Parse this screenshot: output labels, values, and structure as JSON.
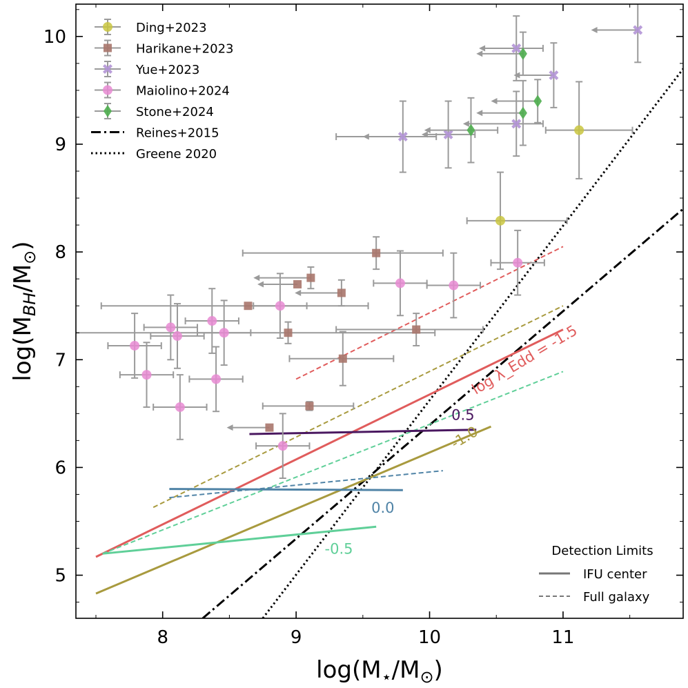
{
  "chart_data": {
    "type": "scatter",
    "xlabel": "log(M⋆/M⊙)",
    "ylabel": "log(M_BH/M⊙)",
    "xlim": [
      7.35,
      11.9
    ],
    "ylim": [
      4.6,
      10.3
    ],
    "xticks": [
      8,
      9,
      10,
      11
    ],
    "yticks": [
      5,
      6,
      7,
      8,
      9,
      10
    ],
    "legend": {
      "position": "top-left",
      "entries": [
        {
          "label": "Ding+2023",
          "kind": "marker",
          "color": "#c9c640",
          "marker": "circle"
        },
        {
          "label": "Harikane+2023",
          "kind": "marker",
          "color": "#a9766c",
          "marker": "square"
        },
        {
          "label": "Yue+2023",
          "kind": "marker",
          "color": "#b393d6",
          "marker": "x"
        },
        {
          "label": "Maiolino+2024",
          "kind": "marker",
          "color": "#e889d2",
          "marker": "circle"
        },
        {
          "label": "Stone+2024",
          "kind": "marker",
          "color": "#4fae4f",
          "marker": "diamond"
        },
        {
          "label": "Reines+2015",
          "kind": "line",
          "color": "#000000",
          "dash": "dashdot"
        },
        {
          "label": "Greene 2020",
          "kind": "line",
          "color": "#000000",
          "dash": "dotted"
        }
      ]
    },
    "legend2": {
      "position": "bottom-right",
      "title": "Detection Limits",
      "entries": [
        {
          "label": "IFU center",
          "dash": "solid"
        },
        {
          "label": "Full galaxy",
          "dash": "dashed"
        }
      ]
    },
    "series": [
      {
        "name": "Ding+2023",
        "marker": "circle",
        "color": "#c9c640",
        "points": [
          {
            "x": 10.53,
            "y": 8.29,
            "xerr": [
              0.25,
              0.5
            ],
            "yerr": [
              0.45,
              0.45
            ]
          },
          {
            "x": 11.12,
            "y": 9.13,
            "xerr": [
              0.25,
              0.4
            ],
            "yerr": [
              0.45,
              0.45
            ]
          }
        ]
      },
      {
        "name": "Harikane+2023",
        "marker": "square",
        "color": "#a9766c",
        "points": [
          {
            "x": 9.6,
            "y": 7.99,
            "yerr": [
              0.15,
              0.15
            ],
            "xerr": [
              1.0,
              0.5
            ]
          },
          {
            "x": 9.01,
            "y": 7.7,
            "upper_limit": true,
            "arrow": 0.3
          },
          {
            "x": 9.11,
            "y": 7.76,
            "upper_limit": true,
            "yerr": [
              0.1,
              0.1
            ],
            "arrow": 0.43
          },
          {
            "x": 9.34,
            "y": 7.62,
            "upper_limit": true,
            "yerr": [
              0.12,
              0.12
            ],
            "arrow": 0.35
          },
          {
            "x": 8.64,
            "y": 7.5,
            "xerr": [
              1.1,
              0.9
            ]
          },
          {
            "x": 8.94,
            "y": 7.25,
            "xerr": [
              1.7,
              1.1
            ],
            "yerr": [
              0.1,
              0.1
            ]
          },
          {
            "x": 9.9,
            "y": 7.28,
            "xerr": [
              0.6,
              0.5
            ],
            "yerr": [
              0.15,
              0.15
            ]
          },
          {
            "x": 9.35,
            "y": 7.01,
            "xerr": [
              0.4,
              0.38
            ],
            "yerr": [
              0.25,
              0.25
            ]
          },
          {
            "x": 9.1,
            "y": 6.57,
            "xerr": [
              0.35,
              0.33
            ],
            "yerr": [
              0.04,
              0.04
            ]
          },
          {
            "x": 8.8,
            "y": 6.37,
            "upper_limit": true,
            "arrow": 0.32
          }
        ]
      },
      {
        "name": "Yue+2023",
        "marker": "x",
        "color": "#b393d6",
        "points": [
          {
            "x": 11.56,
            "y": 10.06,
            "upper_limit": true,
            "yerr": [
              0.3,
              0.3
            ],
            "arrow": 0.35
          },
          {
            "x": 10.65,
            "y": 9.89,
            "upper_limit": true,
            "yerr": [
              0.3,
              0.3
            ],
            "xerr": [
              0.0,
              0.2
            ],
            "arrow": 0.28
          },
          {
            "x": 10.93,
            "y": 9.64,
            "upper_limit": true,
            "yerr": [
              0.3,
              0.3
            ],
            "arrow": 0.3
          },
          {
            "x": 10.65,
            "y": 9.19,
            "upper_limit": true,
            "yerr": [
              0.3,
              0.3
            ],
            "xerr": [
              0.0,
              0.2
            ],
            "arrow": 0.4
          },
          {
            "x": 9.8,
            "y": 9.07,
            "upper_limit": true,
            "yerr": [
              0.33,
              0.33
            ],
            "xerr": [
              0.5,
              0.25
            ],
            "arrow": 0.3
          },
          {
            "x": 10.14,
            "y": 9.09,
            "upper_limit": true,
            "yerr": [
              0.31,
              0.31
            ],
            "xerr": [
              0.0,
              0.2
            ],
            "arrow": 0.2
          }
        ]
      },
      {
        "name": "Maiolino+2024",
        "marker": "circle",
        "color": "#e889d2",
        "points": [
          {
            "x": 10.66,
            "y": 7.9,
            "xerr": [
              0.2,
              0.2
            ],
            "yerr": [
              0.3,
              0.3
            ]
          },
          {
            "x": 9.78,
            "y": 7.71,
            "xerr": [
              0.2,
              0.2
            ],
            "yerr": [
              0.3,
              0.3
            ]
          },
          {
            "x": 10.18,
            "y": 7.69,
            "xerr": [
              0.2,
              0.2
            ],
            "yerr": [
              0.3,
              0.3
            ]
          },
          {
            "x": 8.88,
            "y": 7.5,
            "xerr": [
              0.2,
              0.2
            ],
            "yerr": [
              0.3,
              0.3
            ]
          },
          {
            "x": 8.37,
            "y": 7.36,
            "xerr": [
              0.2,
              0.2
            ],
            "yerr": [
              0.3,
              0.3
            ]
          },
          {
            "x": 8.06,
            "y": 7.3,
            "xerr": [
              0.2,
              0.2
            ],
            "yerr": [
              0.3,
              0.3
            ]
          },
          {
            "x": 8.46,
            "y": 7.25,
            "xerr": [
              0.2,
              0.2
            ],
            "yerr": [
              0.3,
              0.3
            ]
          },
          {
            "x": 8.11,
            "y": 7.22,
            "xerr": [
              0.2,
              0.2
            ],
            "yerr": [
              0.3,
              0.3
            ]
          },
          {
            "x": 7.79,
            "y": 7.13,
            "xerr": [
              0.2,
              0.2
            ],
            "yerr": [
              0.3,
              0.3
            ]
          },
          {
            "x": 7.88,
            "y": 6.86,
            "xerr": [
              0.2,
              0.2
            ],
            "yerr": [
              0.3,
              0.3
            ]
          },
          {
            "x": 8.4,
            "y": 6.82,
            "xerr": [
              0.2,
              0.2
            ],
            "yerr": [
              0.3,
              0.3
            ]
          },
          {
            "x": 8.13,
            "y": 6.56,
            "xerr": [
              0.2,
              0.2
            ],
            "yerr": [
              0.3,
              0.3
            ]
          },
          {
            "x": 8.9,
            "y": 6.2,
            "xerr": [
              0.2,
              0.2
            ],
            "yerr": [
              0.3,
              0.3
            ]
          }
        ]
      },
      {
        "name": "Stone+2024",
        "marker": "diamond",
        "color": "#4fae4f",
        "points": [
          {
            "x": 10.7,
            "y": 9.84,
            "upper_limit": true,
            "yerr": [
              0.2,
              0.2
            ],
            "arrow": 0.35
          },
          {
            "x": 10.81,
            "y": 9.4,
            "upper_limit": true,
            "yerr": [
              0.2,
              0.2
            ],
            "arrow": 0.35
          },
          {
            "x": 10.7,
            "y": 9.29,
            "upper_limit": true,
            "yerr": [
              0.3,
              0.3
            ],
            "arrow": 0.35
          },
          {
            "x": 10.31,
            "y": 9.13,
            "upper_limit": true,
            "yerr": [
              0.3,
              0.3
            ],
            "xerr": [
              0.0,
              0.2
            ],
            "arrow": 0.35
          }
        ]
      }
    ],
    "relations": [
      {
        "name": "Reines+2015",
        "dash": "dashdot",
        "color": "#000000",
        "x": [
          8.3,
          11.9
        ],
        "y": [
          4.6,
          8.4
        ]
      },
      {
        "name": "Greene 2020",
        "dash": "dotted",
        "color": "#000000",
        "x": [
          8.75,
          11.9
        ],
        "y": [
          4.6,
          9.7
        ]
      }
    ],
    "detection_limits": [
      {
        "log_lambda_edd": "-1.5",
        "color": "#e05c5c",
        "ifu_center": {
          "x": [
            7.5,
            11.0
          ],
          "y": [
            5.17,
            7.28
          ]
        },
        "full_galaxy": {
          "x": [
            9.0,
            11.0
          ],
          "y": [
            6.82,
            8.05
          ]
        }
      },
      {
        "log_lambda_edd": "-1.0",
        "color": "#a89a3e",
        "ifu_center": {
          "x": [
            7.5,
            10.46
          ],
          "y": [
            4.83,
            6.38
          ]
        },
        "full_galaxy": {
          "x": [
            7.93,
            11.0
          ],
          "y": [
            5.63,
            7.5
          ]
        }
      },
      {
        "log_lambda_edd": "-0.5",
        "color": "#5fcf98",
        "ifu_center": {
          "x": [
            7.55,
            9.6
          ],
          "y": [
            5.2,
            5.45
          ]
        },
        "full_galaxy": {
          "x": [
            7.55,
            11.0
          ],
          "y": [
            5.2,
            6.89
          ]
        }
      },
      {
        "log_lambda_edd": "0.0",
        "color": "#4f83a6",
        "ifu_center": {
          "x": [
            8.05,
            9.8
          ],
          "y": [
            5.8,
            5.79
          ]
        },
        "full_galaxy": {
          "x": [
            8.05,
            10.1
          ],
          "y": [
            5.72,
            5.97
          ]
        }
      },
      {
        "log_lambda_edd": "0.5",
        "color": "#4a1860",
        "ifu_center": {
          "x": [
            8.65,
            10.35
          ],
          "y": [
            6.31,
            6.35
          ]
        }
      }
    ],
    "annotations": [
      {
        "text": "log λ_Edd = -1.5",
        "x": 10.73,
        "y": 6.96,
        "color": "#e05c5c",
        "rotate": -31
      },
      {
        "text": "0.5",
        "x": 10.25,
        "y": 6.44,
        "color": "#4a1860"
      },
      {
        "text": "-1.0",
        "x": 10.28,
        "y": 6.24,
        "color": "#a89a3e",
        "rotate": -31
      },
      {
        "text": "0.0",
        "x": 9.65,
        "y": 5.58,
        "color": "#4f83a6"
      },
      {
        "text": "-0.5",
        "x": 9.32,
        "y": 5.2,
        "color": "#5fcf98"
      }
    ]
  }
}
